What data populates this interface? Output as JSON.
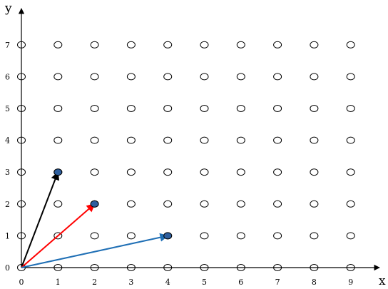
{
  "chart_data": {
    "type": "scatter",
    "xlabel": "x",
    "ylabel": "y",
    "xlim": [
      0,
      9
    ],
    "ylim": [
      0,
      7
    ],
    "x_ticks": [
      "0",
      "1",
      "2",
      "3",
      "4",
      "5",
      "6",
      "7",
      "8",
      "9"
    ],
    "y_ticks": [
      "0",
      "1",
      "2",
      "3",
      "4",
      "5",
      "6",
      "7"
    ],
    "grid_points": "all integer lattice points from (0,0) to (9,7), drawn as hollow ellipses",
    "vectors": [
      {
        "from": [
          0,
          0
        ],
        "to": [
          1,
          3
        ],
        "color": "#000000"
      },
      {
        "from": [
          0,
          0
        ],
        "to": [
          2,
          2
        ],
        "color": "#ff0000"
      },
      {
        "from": [
          0,
          0
        ],
        "to": [
          4,
          1
        ],
        "color": "#1f6fb5"
      }
    ],
    "highlighted_points": [
      [
        1,
        3
      ],
      [
        2,
        2
      ],
      [
        4,
        1
      ]
    ],
    "highlight_color": "#2e5f9e"
  }
}
